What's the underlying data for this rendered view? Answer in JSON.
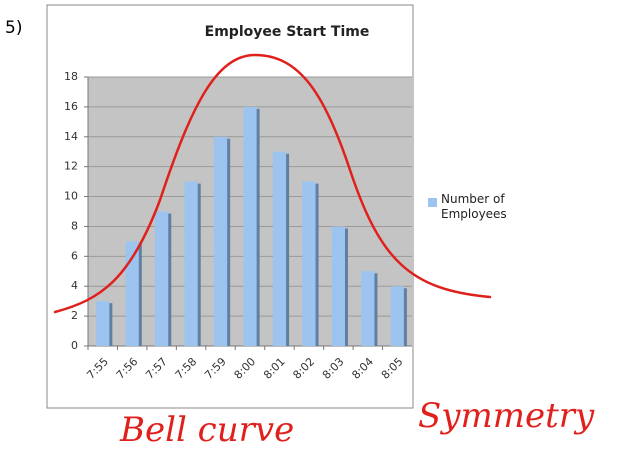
{
  "chart_data": {
    "type": "bar",
    "title": "Employee Start Time",
    "categories": [
      "7:55",
      "7:56",
      "7:57",
      "7:58",
      "7:59",
      "8:00",
      "8:01",
      "8:02",
      "8:03",
      "8:04",
      "8:05"
    ],
    "series": [
      {
        "name": "Number of Employees",
        "color": "#9dc3ef",
        "values": [
          3,
          7,
          9,
          11,
          14,
          16,
          13,
          11,
          8,
          5,
          4
        ]
      }
    ],
    "ylim": [
      0,
      18
    ],
    "yticks": [
      0,
      2,
      4,
      6,
      8,
      10,
      12,
      14,
      16,
      18
    ],
    "grid": true,
    "legend": "right",
    "annotations": [
      "5)",
      "Bell curve",
      "Symmetry"
    ]
  }
}
